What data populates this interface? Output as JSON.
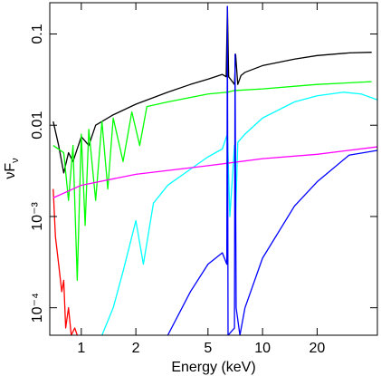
{
  "chart_data": {
    "type": "line",
    "xlabel": "Energy (keV)",
    "ylabel": "νFν",
    "xscale": "log",
    "yscale": "log",
    "xlim": [
      0.67,
      43
    ],
    "ylim": [
      5e-05,
      0.22
    ],
    "xticks": [
      1,
      2,
      5,
      10,
      20
    ],
    "yticks": [
      {
        "value": 0.0001,
        "label": "10⁻⁴"
      },
      {
        "value": 0.001,
        "label": "10⁻³"
      },
      0.01,
      0.1
    ],
    "series": [
      {
        "color": "#000000",
        "x": [
          0.7,
          0.75,
          0.8,
          0.85,
          0.9,
          1.0,
          1.1,
          1.2,
          1.5,
          2,
          3,
          4,
          5,
          6,
          6.3,
          6.4,
          6.5,
          7,
          7.1,
          7.3,
          7.6,
          8,
          10,
          15,
          20,
          30,
          40
        ],
        "values": [
          0.011,
          0.006,
          0.003,
          0.005,
          0.004,
          0.0075,
          0.006,
          0.01,
          0.013,
          0.017,
          0.023,
          0.028,
          0.032,
          0.036,
          0.034,
          0.2,
          0.034,
          0.028,
          0.06,
          0.028,
          0.035,
          0.038,
          0.045,
          0.053,
          0.058,
          0.062,
          0.063
        ]
      },
      {
        "color": "#00ff00",
        "x": [
          0.7,
          0.8,
          0.85,
          0.9,
          0.95,
          1,
          1.05,
          1.1,
          1.2,
          1.3,
          1.4,
          1.5,
          1.7,
          1.9,
          2.1,
          2.3,
          3,
          5,
          6.4,
          7,
          10,
          20,
          40
        ],
        "values": [
          0.006,
          0.005,
          0.0015,
          0.006,
          0.0002,
          0.008,
          0.0008,
          0.009,
          0.0015,
          0.011,
          0.002,
          0.012,
          0.004,
          0.014,
          0.006,
          0.016,
          0.018,
          0.022,
          0.023,
          0.024,
          0.025,
          0.028,
          0.03
        ]
      },
      {
        "color": "#ff0000",
        "x": [
          0.7,
          0.72,
          0.75,
          0.78,
          0.8,
          0.82,
          0.85,
          0.88,
          0.92,
          0.95
        ],
        "values": [
          0.002,
          0.0006,
          0.0003,
          0.00015,
          0.0002,
          6e-05,
          0.0001,
          5e-05,
          6e-05,
          5e-05
        ]
      },
      {
        "color": "#00ffff",
        "x": [
          1.3,
          1.5,
          1.7,
          2,
          2.2,
          2.5,
          3,
          4,
          5,
          6,
          6.4,
          6.6,
          7,
          7.1,
          7.3,
          8,
          10,
          15,
          20,
          28,
          35,
          43
        ],
        "values": [
          5e-05,
          0.0001,
          0.00025,
          0.0009,
          0.0003,
          0.0014,
          0.0022,
          0.0033,
          0.0045,
          0.0055,
          0.008,
          0.001,
          0.006,
          0.001,
          0.0065,
          0.008,
          0.012,
          0.018,
          0.021,
          0.023,
          0.022,
          0.019
        ]
      },
      {
        "color": "#ff00ff",
        "x": [
          0.7,
          1,
          2,
          5,
          10,
          20,
          43
        ],
        "values": [
          0.0016,
          0.0022,
          0.0029,
          0.0036,
          0.0043,
          0.0048,
          0.0058
        ]
      },
      {
        "color": "#0000ff",
        "x": [
          3,
          4,
          5,
          6,
          6.35,
          6.4,
          6.45,
          7,
          7.05,
          7.15,
          7.5,
          8,
          10,
          15,
          20,
          30,
          43
        ],
        "values": [
          5e-05,
          0.00015,
          0.0003,
          0.0004,
          0.0003,
          0.2,
          5e-05,
          6e-05,
          0.06,
          0.0001,
          5e-05,
          0.0001,
          0.00035,
          0.0013,
          0.0024,
          0.0047,
          0.0053
        ]
      }
    ]
  }
}
